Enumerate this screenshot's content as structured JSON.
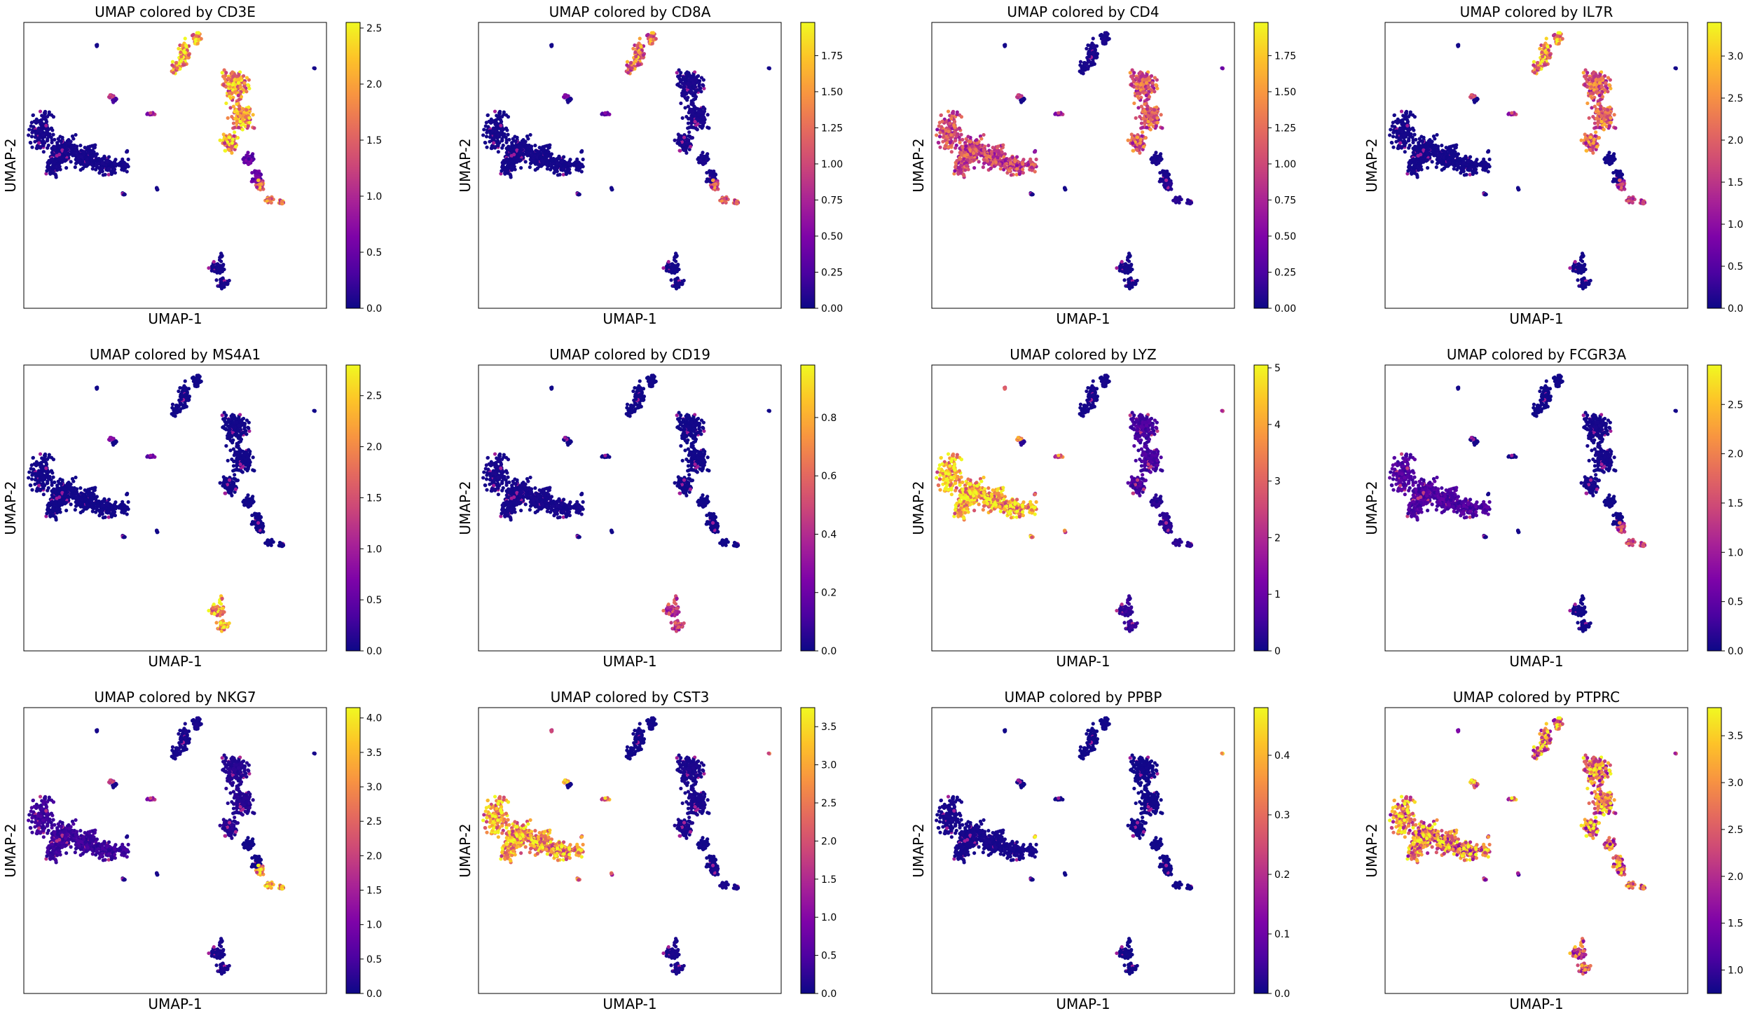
{
  "chart_data": [
    {
      "type": "scatter",
      "title": "UMAP colored by CD3E",
      "gene": "CD3E",
      "xlabel": "UMAP-1",
      "ylabel": "UMAP-2",
      "colormap": "plasma",
      "colorbar_range": [
        0,
        2.55
      ],
      "colorbar_ticks": [
        "0.0",
        "0.5",
        "1.0",
        "1.5",
        "2.0",
        "2.5"
      ],
      "cluster_levels": {
        "tcell_a": 2.2,
        "tcell_b": 0.5,
        "tcell_c": 1.9,
        "tcell_tail": 1.6,
        "mono_big": 0.05,
        "bcell": 0.05,
        "nk": 0.3,
        "blob1": 0.9,
        "blob2": 0.05,
        "dots": 0.05
      }
    },
    {
      "type": "scatter",
      "title": "UMAP colored by CD8A",
      "gene": "CD8A",
      "xlabel": "UMAP-1",
      "ylabel": "UMAP-2",
      "colormap": "plasma",
      "colorbar_range": [
        0,
        1.98
      ],
      "colorbar_ticks": [
        "0.00",
        "0.25",
        "0.50",
        "0.75",
        "1.00",
        "1.25",
        "1.50",
        "1.75"
      ],
      "cluster_levels": {
        "tcell_a": 1.3,
        "tcell_b": 0.05,
        "tcell_c": 0.05,
        "tcell_tail": 1.1,
        "mono_big": 0.03,
        "bcell": 0.03,
        "nk": 0.05,
        "blob1": 0.4,
        "blob2": 0.03,
        "dots": 0.03
      }
    },
    {
      "type": "scatter",
      "title": "UMAP colored by CD4",
      "gene": "CD4",
      "xlabel": "UMAP-1",
      "ylabel": "UMAP-2",
      "colormap": "plasma",
      "colorbar_range": [
        0,
        1.98
      ],
      "colorbar_ticks": [
        "0.00",
        "0.25",
        "0.50",
        "0.75",
        "1.00",
        "1.25",
        "1.50",
        "1.75"
      ],
      "cluster_levels": {
        "tcell_a": 0.05,
        "tcell_b": 0.05,
        "tcell_c": 1.1,
        "tcell_tail": 0.1,
        "mono_big": 1.0,
        "bcell": 0.03,
        "nk": 0.03,
        "blob1": 0.7,
        "blob2": 0.03,
        "dots": 0.5
      }
    },
    {
      "type": "scatter",
      "title": "UMAP colored by IL7R",
      "gene": "IL7R",
      "xlabel": "UMAP-1",
      "ylabel": "UMAP-2",
      "colormap": "plasma",
      "colorbar_range": [
        0,
        3.4
      ],
      "colorbar_ticks": [
        "0.0",
        "0.5",
        "1.0",
        "1.5",
        "2.0",
        "2.5",
        "3.0"
      ],
      "cluster_levels": {
        "tcell_a": 2.6,
        "tcell_b": 0.05,
        "tcell_c": 2.0,
        "tcell_tail": 1.5,
        "mono_big": 0.05,
        "bcell": 0.05,
        "nk": 0.05,
        "blob1": 1.4,
        "blob2": 0.05,
        "dots": 0.05
      }
    },
    {
      "type": "scatter",
      "title": "UMAP colored by MS4A1",
      "gene": "MS4A1",
      "xlabel": "UMAP-1",
      "ylabel": "UMAP-2",
      "colormap": "plasma",
      "colorbar_range": [
        0,
        2.8
      ],
      "colorbar_ticks": [
        "0.0",
        "0.5",
        "1.0",
        "1.5",
        "2.0",
        "2.5"
      ],
      "cluster_levels": {
        "tcell_a": 0.03,
        "tcell_b": 0.03,
        "tcell_c": 0.03,
        "tcell_tail": 0.03,
        "mono_big": 0.03,
        "bcell": 2.2,
        "nk": 0.03,
        "blob1": 0.6,
        "blob2": 0.03,
        "dots": 0.03
      }
    },
    {
      "type": "scatter",
      "title": "UMAP colored by CD19",
      "gene": "CD19",
      "xlabel": "UMAP-1",
      "ylabel": "UMAP-2",
      "colormap": "plasma",
      "colorbar_range": [
        0,
        0.98
      ],
      "colorbar_ticks": [
        "0.0",
        "0.2",
        "0.4",
        "0.6",
        "0.8"
      ],
      "cluster_levels": {
        "tcell_a": 0.01,
        "tcell_b": 0.01,
        "tcell_c": 0.01,
        "tcell_tail": 0.01,
        "mono_big": 0.02,
        "bcell": 0.45,
        "nk": 0.01,
        "blob1": 0.01,
        "blob2": 0.01,
        "dots": 0.01
      }
    },
    {
      "type": "scatter",
      "title": "UMAP colored by LYZ",
      "gene": "LYZ",
      "xlabel": "UMAP-1",
      "ylabel": "UMAP-2",
      "colormap": "plasma",
      "colorbar_range": [
        0,
        5.05
      ],
      "colorbar_ticks": [
        "0",
        "1",
        "2",
        "3",
        "4",
        "5"
      ],
      "cluster_levels": {
        "tcell_a": 0.1,
        "tcell_b": 0.3,
        "tcell_c": 0.6,
        "tcell_tail": 0.3,
        "mono_big": 4.3,
        "bcell": 0.4,
        "nk": 0.3,
        "blob1": 3.0,
        "blob2": 3.5,
        "dots": 2.5
      }
    },
    {
      "type": "scatter",
      "title": "UMAP colored by FCGR3A",
      "gene": "FCGR3A",
      "xlabel": "UMAP-1",
      "ylabel": "UMAP-2",
      "colormap": "plasma",
      "colorbar_range": [
        0,
        2.9
      ],
      "colorbar_ticks": [
        "0.0",
        "0.5",
        "1.0",
        "1.5",
        "2.0",
        "2.5"
      ],
      "cluster_levels": {
        "tcell_a": 0.03,
        "tcell_b": 0.03,
        "tcell_c": 0.05,
        "tcell_tail": 1.4,
        "mono_big": 0.4,
        "bcell": 0.03,
        "nk": 0.05,
        "blob1": 0.05,
        "blob2": 0.05,
        "dots": 0.05
      }
    },
    {
      "type": "scatter",
      "title": "UMAP colored by NKG7",
      "gene": "NKG7",
      "xlabel": "UMAP-1",
      "ylabel": "UMAP-2",
      "colormap": "plasma",
      "colorbar_range": [
        0,
        4.15
      ],
      "colorbar_ticks": [
        "0.0",
        "0.5",
        "1.0",
        "1.5",
        "2.0",
        "2.5",
        "3.0",
        "3.5",
        "4.0"
      ],
      "cluster_levels": {
        "tcell_a": 0.1,
        "tcell_b": 0.05,
        "tcell_c": 0.2,
        "tcell_tail": 3.3,
        "mono_big": 0.4,
        "bcell": 0.1,
        "nk": 0.1,
        "blob1": 1.5,
        "blob2": 0.1,
        "dots": 0.1
      }
    },
    {
      "type": "scatter",
      "title": "UMAP colored by CST3",
      "gene": "CST3",
      "xlabel": "UMAP-1",
      "ylabel": "UMAP-2",
      "colormap": "plasma",
      "colorbar_range": [
        0,
        3.75
      ],
      "colorbar_ticks": [
        "0.0",
        "0.5",
        "1.0",
        "1.5",
        "2.0",
        "2.5",
        "3.0",
        "3.5"
      ],
      "cluster_levels": {
        "tcell_a": 0.05,
        "tcell_b": 0.05,
        "tcell_c": 0.1,
        "tcell_tail": 0.1,
        "mono_big": 2.9,
        "bcell": 0.1,
        "nk": 0.05,
        "blob1": 2.5,
        "blob2": 2.2,
        "dots": 2.4
      }
    },
    {
      "type": "scatter",
      "title": "UMAP colored by PPBP",
      "gene": "PPBP",
      "xlabel": "UMAP-1",
      "ylabel": "UMAP-2",
      "colormap": "plasma",
      "colorbar_range": [
        0,
        0.48
      ],
      "colorbar_ticks": [
        "0.0",
        "0.1",
        "0.2",
        "0.3",
        "0.4"
      ],
      "cluster_levels": {
        "tcell_a": 0.005,
        "tcell_b": 0.005,
        "tcell_c": 0.005,
        "tcell_tail": 0.005,
        "mono_big": 0.01,
        "bcell": 0.005,
        "nk": 0.005,
        "blob1": 0.005,
        "blob2": 0.005,
        "dots": 0.45
      }
    },
    {
      "type": "scatter",
      "title": "UMAP colored by PTPRC",
      "gene": "PTPRC",
      "xlabel": "UMAP-1",
      "ylabel": "UMAP-2",
      "colormap": "plasma",
      "colorbar_range": [
        0.75,
        3.8
      ],
      "colorbar_ticks": [
        "1.0",
        "1.5",
        "2.0",
        "2.5",
        "3.0",
        "3.5"
      ],
      "cluster_levels": {
        "tcell_a": 2.9,
        "tcell_b": 2.7,
        "tcell_c": 2.8,
        "tcell_tail": 2.6,
        "mono_big": 2.9,
        "bcell": 2.4,
        "nk": 2.5,
        "blob1": 2.8,
        "blob2": 1.8,
        "dots": 2.4
      }
    }
  ]
}
